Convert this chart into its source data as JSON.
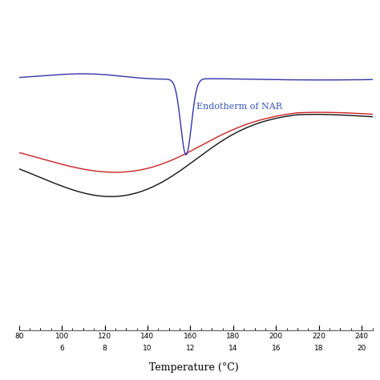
{
  "title": "",
  "xlabel": "Temperature (°C)",
  "xticks_top": [
    80,
    100,
    120,
    140,
    160,
    180,
    200,
    220,
    240
  ],
  "xticks_bot": [
    6,
    8,
    10,
    12,
    14,
    16,
    18,
    20
  ],
  "annotation_text": "Endotherm of NAR",
  "annotation_color": "#3355bb",
  "blue_color": "#3333aa",
  "red_color": "#cc2222",
  "black_color": "#111111",
  "background_color": "#ffffff",
  "line_width": 1.0
}
